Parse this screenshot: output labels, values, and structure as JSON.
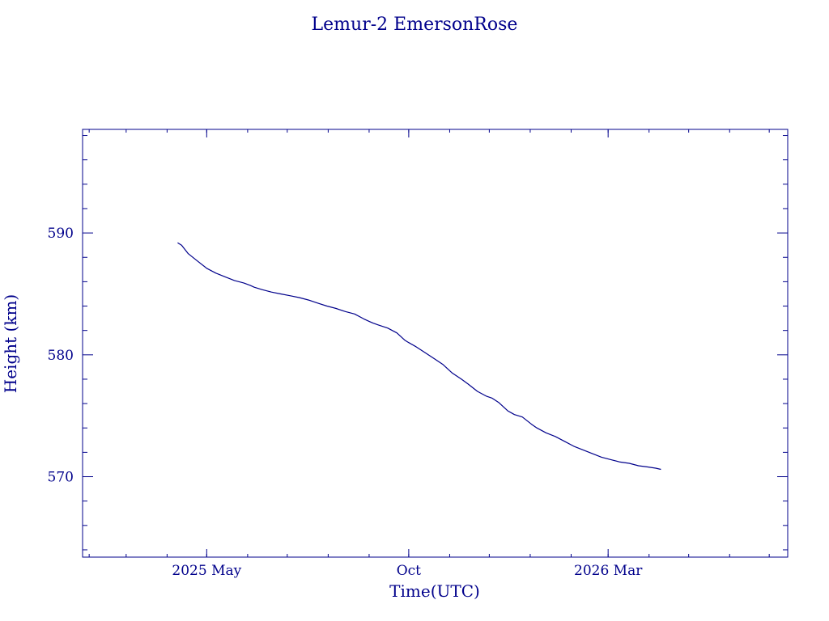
{
  "chart_data": {
    "type": "line",
    "title": "Lemur-2 EmersonRose",
    "xlabel": "Time(UTC)",
    "ylabel": "Height (km)",
    "xlim": [
      "2025-01-27",
      "2026-07-15"
    ],
    "ylim": [
      563.4,
      598.5
    ],
    "x_ticks": [
      {
        "date": "2025-05-01",
        "label": "2025 May"
      },
      {
        "date": "2025-10-01",
        "label": "Oct"
      },
      {
        "date": "2026-03-01",
        "label": "2026 Mar"
      }
    ],
    "y_ticks": [
      {
        "value": 570,
        "label": "570"
      },
      {
        "value": 580,
        "label": "580"
      },
      {
        "value": 590,
        "label": "590"
      }
    ],
    "grid": false,
    "colors": {
      "line": "#00008B",
      "axes": "#00008B",
      "text": "#00008B"
    },
    "series": [
      {
        "x": [
          "2025-04-09",
          "2025-04-12",
          "2025-04-17",
          "2025-04-24",
          "2025-05-01",
          "2025-05-08",
          "2025-05-15",
          "2025-05-22",
          "2025-05-29",
          "2025-06-03",
          "2025-06-06",
          "2025-06-12",
          "2025-06-19",
          "2025-06-26",
          "2025-07-03",
          "2025-07-10",
          "2025-07-17",
          "2025-07-24",
          "2025-07-31",
          "2025-08-07",
          "2025-08-14",
          "2025-08-21",
          "2025-08-28",
          "2025-09-01",
          "2025-09-04",
          "2025-09-08",
          "2025-09-15",
          "2025-09-22",
          "2025-09-28",
          "2025-10-01",
          "2025-10-06",
          "2025-10-13",
          "2025-10-20",
          "2025-10-27",
          "2025-11-03",
          "2025-11-10",
          "2025-11-15",
          "2025-11-22",
          "2025-11-29",
          "2025-12-03",
          "2025-12-08",
          "2025-12-15",
          "2025-12-20",
          "2025-12-26",
          "2026-01-02",
          "2026-01-06",
          "2026-01-13",
          "2026-01-20",
          "2026-01-27",
          "2026-02-03",
          "2026-02-10",
          "2026-02-17",
          "2026-02-24",
          "2026-03-03",
          "2026-03-10",
          "2026-03-17",
          "2026-03-24",
          "2026-03-31",
          "2026-04-06",
          "2026-04-10"
        ],
        "y": [
          589.2,
          589.0,
          588.3,
          587.7,
          587.1,
          586.7,
          586.4,
          586.1,
          585.9,
          585.7,
          585.55,
          585.35,
          585.15,
          585.0,
          584.85,
          584.7,
          584.5,
          584.25,
          584.0,
          583.8,
          583.55,
          583.35,
          582.95,
          582.75,
          582.6,
          582.45,
          582.2,
          581.8,
          581.2,
          581.0,
          580.7,
          580.2,
          579.7,
          579.2,
          578.5,
          578.0,
          577.6,
          577.0,
          576.6,
          576.45,
          576.1,
          575.4,
          575.1,
          574.9,
          574.3,
          574.0,
          573.6,
          573.3,
          572.9,
          572.5,
          572.2,
          571.9,
          571.6,
          571.4,
          571.2,
          571.1,
          570.9,
          570.8,
          570.7,
          570.6
        ]
      }
    ]
  }
}
